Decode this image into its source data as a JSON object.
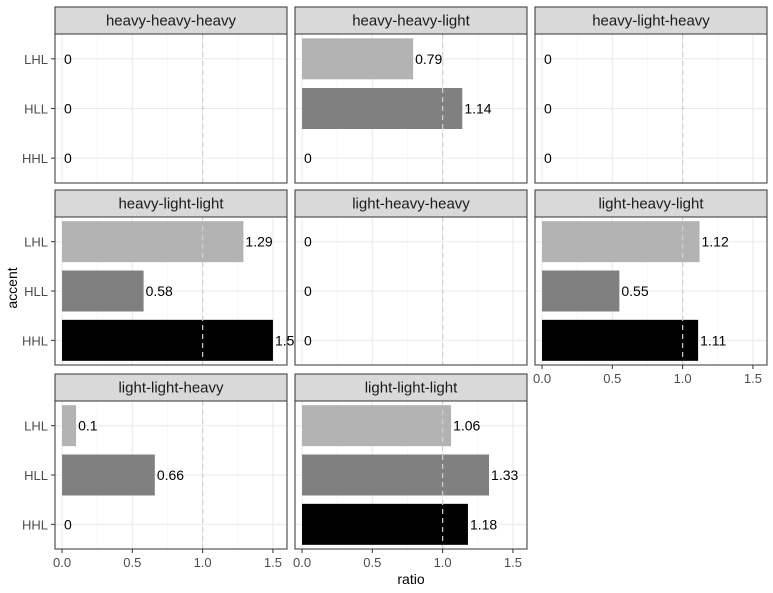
{
  "chart_data": {
    "type": "bar",
    "orientation": "horizontal",
    "facet_by": "pattern",
    "categories": [
      "LHL",
      "HLL",
      "HHL"
    ],
    "xlabel": "ratio",
    "ylabel": "accent",
    "xlim": [
      -0.05,
      1.6
    ],
    "x_ticks": [
      0.0,
      0.5,
      1.0,
      1.5
    ],
    "x_tick_labels": [
      "0.0",
      "0.5",
      "1.0",
      "1.5"
    ],
    "reference_line": 1.0,
    "grid": true,
    "legend": "none",
    "colors": {
      "LHL": "#b3b3b3",
      "HLL": "#808080",
      "HHL": "#000000"
    },
    "panels": [
      {
        "title": "heavy-heavy-heavy",
        "values": [
          0,
          0,
          0
        ],
        "labels": [
          "0",
          "0",
          "0"
        ]
      },
      {
        "title": "heavy-heavy-light",
        "values": [
          0.79,
          1.14,
          0
        ],
        "labels": [
          "0.79",
          "1.14",
          "0"
        ]
      },
      {
        "title": "heavy-light-heavy",
        "values": [
          0,
          0,
          0
        ],
        "labels": [
          "0",
          "0",
          "0"
        ]
      },
      {
        "title": "heavy-light-light",
        "values": [
          1.29,
          0.58,
          1.5
        ],
        "labels": [
          "1.29",
          "0.58",
          "1.5"
        ]
      },
      {
        "title": "light-heavy-heavy",
        "values": [
          0,
          0,
          0
        ],
        "labels": [
          "0",
          "0",
          "0"
        ]
      },
      {
        "title": "light-heavy-light",
        "values": [
          1.12,
          0.55,
          1.11
        ],
        "labels": [
          "1.12",
          "0.55",
          "1.11"
        ]
      },
      {
        "title": "light-light-heavy",
        "values": [
          0.1,
          0.66,
          0
        ],
        "labels": [
          "0.1",
          "0.66",
          "0"
        ]
      },
      {
        "title": "light-light-light",
        "values": [
          1.06,
          1.33,
          1.18
        ],
        "labels": [
          "1.06",
          "1.33",
          "1.18"
        ]
      }
    ]
  }
}
